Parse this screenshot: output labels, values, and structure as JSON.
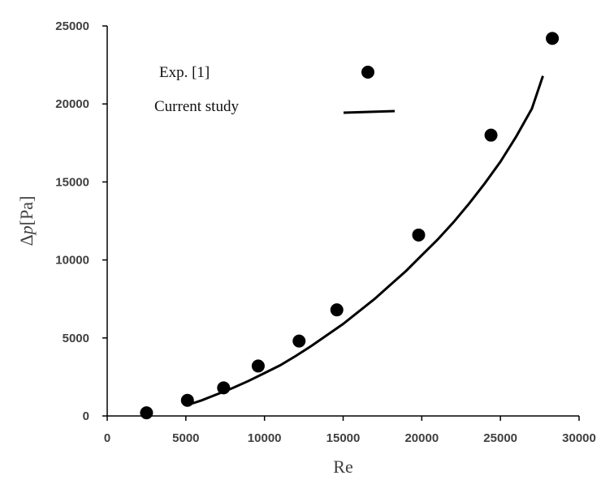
{
  "chart_data": {
    "type": "scatter",
    "title": "",
    "xlabel": "Re",
    "ylabel_symbol": "Δ",
    "ylabel_var": "p",
    "ylabel_unit": "[Pa]",
    "xlim": [
      0,
      30000
    ],
    "ylim": [
      0,
      25000
    ],
    "x_ticks": [
      "0",
      "5000",
      "10000",
      "15000",
      "20000",
      "25000",
      "30000"
    ],
    "y_ticks": [
      "0",
      "5000",
      "10000",
      "15000",
      "20000",
      "25000"
    ],
    "grid": false,
    "legend_position": "top-left",
    "series": [
      {
        "name": "Exp. [1]",
        "marker": "circle",
        "color": "#000000",
        "x": [
          2500,
          5100,
          7400,
          9600,
          12200,
          14600,
          19800,
          24400,
          28300
        ],
        "y": [
          200,
          1000,
          1800,
          3200,
          4800,
          6800,
          11600,
          18000,
          24200
        ]
      },
      {
        "name": "Current study",
        "style": "line",
        "color": "#000000",
        "x": [
          5100,
          6000,
          7000,
          8000,
          9000,
          10000,
          11000,
          12000,
          13000,
          14000,
          15000,
          16000,
          17000,
          18000,
          19000,
          20000,
          21000,
          22000,
          23000,
          24000,
          25000,
          26000,
          27000,
          27700
        ],
        "y": [
          700,
          1000,
          1400,
          1800,
          2250,
          2750,
          3250,
          3850,
          4500,
          5200,
          5900,
          6700,
          7500,
          8400,
          9300,
          10300,
          11300,
          12400,
          13600,
          14900,
          16300,
          17900,
          19700,
          21800
        ]
      }
    ]
  }
}
